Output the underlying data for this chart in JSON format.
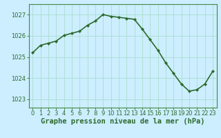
{
  "hours": [
    0,
    1,
    2,
    3,
    4,
    5,
    6,
    7,
    8,
    9,
    10,
    11,
    12,
    13,
    14,
    15,
    16,
    17,
    18,
    19,
    20,
    21,
    22,
    23
  ],
  "pressure": [
    1025.2,
    1025.55,
    1025.65,
    1025.75,
    1026.02,
    1026.12,
    1026.22,
    1026.5,
    1026.7,
    1027.01,
    1026.92,
    1026.88,
    1026.83,
    1026.78,
    1026.32,
    1025.82,
    1025.32,
    1024.72,
    1024.22,
    1023.72,
    1023.38,
    1023.45,
    1023.72,
    1024.32
  ],
  "line_color": "#2d6a2d",
  "marker": "D",
  "marker_size": 2,
  "bg_color": "#cceeff",
  "grid_color": "#aaddcc",
  "axis_color": "#2d6a2d",
  "ylabel_ticks": [
    1023,
    1024,
    1025,
    1026,
    1027
  ],
  "ylim": [
    1022.6,
    1027.5
  ],
  "xlim": [
    -0.5,
    23.5
  ],
  "xlabel": "Graphe pression niveau de la mer (hPa)",
  "xlabel_fontsize": 7.5,
  "tick_fontsize": 6,
  "line_width": 1.2,
  "spine_color": "#448844"
}
